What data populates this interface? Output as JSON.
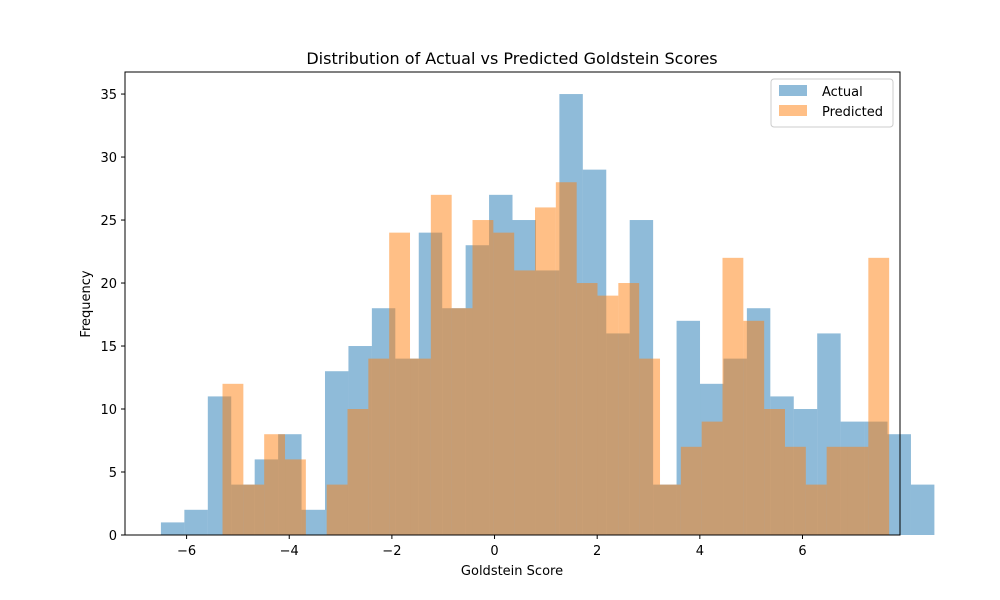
{
  "chart_data": {
    "type": "bar",
    "title": "Distribution of Actual vs Predicted Goldstein Scores",
    "xlabel": "Goldstein Score",
    "ylabel": "Frequency",
    "xlim": [
      -7.2,
      7.9
    ],
    "ylim": [
      0,
      36.75
    ],
    "xticks": [
      -6,
      -4,
      -2,
      0,
      2,
      4,
      6
    ],
    "yticks": [
      0,
      5,
      10,
      15,
      20,
      25,
      30,
      35
    ],
    "legend_position": "upper-right",
    "series": [
      {
        "name": "Actual",
        "color": "#1f77b4",
        "opacity": 0.5,
        "bin_start": -6.5,
        "bin_width": 0.45667,
        "values": [
          1,
          2,
          11,
          4,
          6,
          8,
          2,
          13,
          15,
          18,
          14,
          24,
          18,
          23,
          27,
          25,
          21,
          35,
          29,
          16,
          25,
          4,
          17,
          12,
          14,
          18,
          11,
          10,
          16,
          9,
          9,
          8,
          4
        ]
      },
      {
        "name": "Predicted",
        "color": "#ff7f0e",
        "opacity": 0.5,
        "bin_start": -5.3,
        "bin_width": 0.4059,
        "values": [
          12,
          4,
          8,
          6,
          0,
          4,
          10,
          14,
          24,
          14,
          27,
          18,
          25,
          24,
          21,
          26,
          28,
          20,
          19,
          20,
          14,
          4,
          7,
          9,
          22,
          17,
          10,
          7,
          4,
          7,
          7,
          22
        ]
      }
    ]
  }
}
